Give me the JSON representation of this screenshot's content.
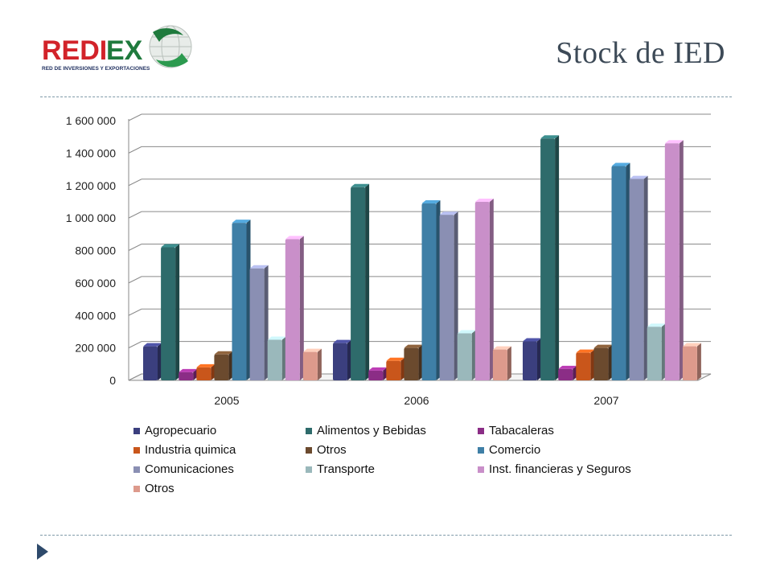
{
  "slide": {
    "title": "Stock de IED",
    "logo_name": "REDIEX",
    "logo_tagline": "RED DE INVERSIONES Y EXPORTACIONES"
  },
  "chart_data": {
    "type": "bar",
    "style": "3d-clustered-column",
    "categories": [
      "2005",
      "2006",
      "2007"
    ],
    "ylim": [
      0,
      1600000
    ],
    "y_ticks": [
      0,
      200000,
      400000,
      600000,
      800000,
      1000000,
      1200000,
      1400000,
      1600000
    ],
    "y_tick_labels": [
      "0",
      "200 000",
      "400 000",
      "600 000",
      "800 000",
      "1 000 000",
      "1 200 000",
      "1 400 000",
      "1 600 000"
    ],
    "grid": true,
    "legend_position": "bottom",
    "series": [
      {
        "name": "Agropecuario",
        "color": "#3b3f7e",
        "values": [
          210000,
          230000,
          240000
        ]
      },
      {
        "name": "Alimentos y Bebidas",
        "color": "#2e6b6b",
        "values": [
          820000,
          1190000,
          1490000
        ]
      },
      {
        "name": "Tabacaleras",
        "color": "#8b2d86",
        "values": [
          50000,
          60000,
          70000
        ]
      },
      {
        "name": "Industria quimica",
        "color": "#c9561b",
        "values": [
          80000,
          120000,
          170000
        ]
      },
      {
        "name": "Otros",
        "color": "#6b4a2e",
        "values": [
          160000,
          200000,
          200000
        ]
      },
      {
        "name": "Comercio",
        "color": "#3f7fa6",
        "values": [
          970000,
          1090000,
          1320000
        ]
      },
      {
        "name": "Comunicaciones",
        "color": "#8a8fb3",
        "values": [
          690000,
          1020000,
          1240000
        ]
      },
      {
        "name": "Transporte",
        "color": "#9ab8bb",
        "values": [
          250000,
          290000,
          330000
        ]
      },
      {
        "name": "Inst. financieras y Seguros",
        "color": "#c98fc9",
        "values": [
          870000,
          1100000,
          1460000
        ]
      },
      {
        "name": "Otros",
        "color": "#dd9a8c",
        "values": [
          175000,
          190000,
          210000
        ]
      }
    ]
  }
}
